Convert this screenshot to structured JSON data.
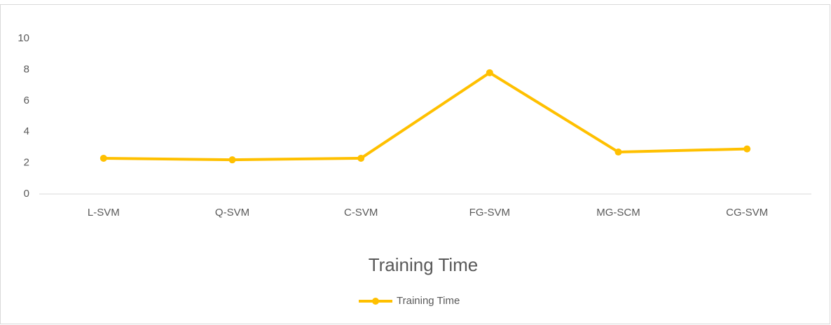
{
  "chart_data": {
    "type": "line",
    "title": "Training Time",
    "categories": [
      "L-SVM",
      "Q-SVM",
      "C-SVM",
      "FG-SVM",
      "MG-SCM",
      "CG-SVM"
    ],
    "series": [
      {
        "name": "Training Time",
        "color": "#ffc000",
        "values": [
          2.3,
          2.2,
          2.3,
          7.8,
          2.7,
          2.9
        ]
      }
    ],
    "ylim": [
      0,
      10
    ],
    "yticks": [
      0,
      2,
      4,
      6,
      8,
      10
    ],
    "grid": false,
    "legend": "bottom"
  }
}
